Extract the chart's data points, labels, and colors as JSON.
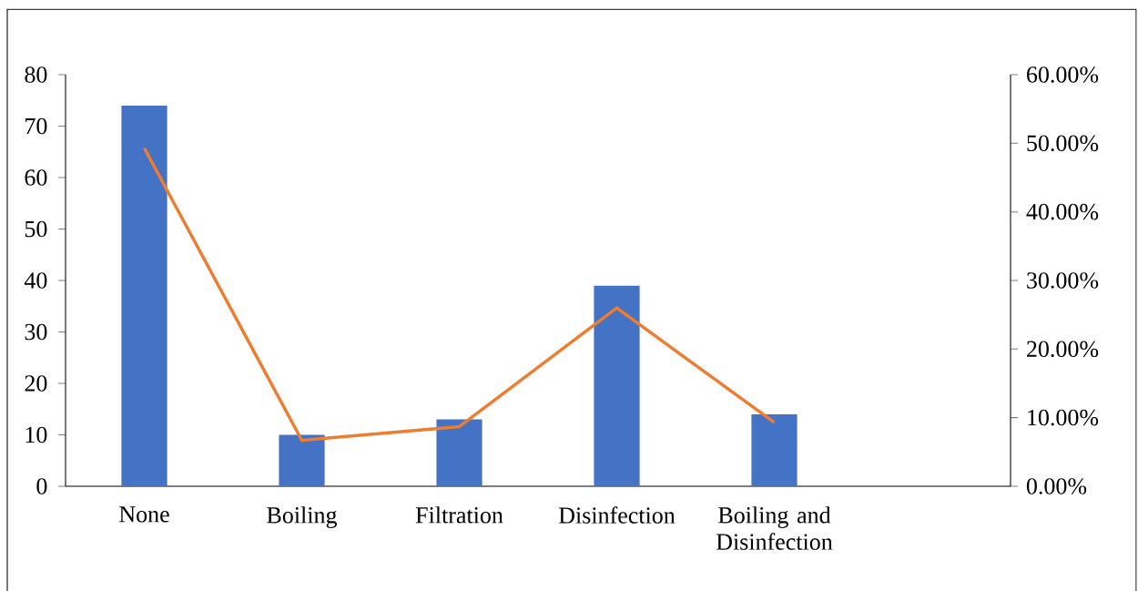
{
  "chart_data": {
    "type": "bar",
    "categories": [
      "None",
      "Boiling",
      "Filtration",
      "Disinfection",
      "Boiling and Disinfection",
      null
    ],
    "series": [
      {
        "color": "#4472c4",
        "values": [
          74,
          10,
          13,
          39,
          14,
          null
        ]
      },
      {
        "type": "line",
        "axis": "y2",
        "color": "#ed7d31",
        "values": [
          49.3,
          6.7,
          8.7,
          26,
          9.3,
          null
        ]
      }
    ],
    "ylim": [
      0,
      80
    ],
    "yticks": [
      0,
      10,
      20,
      30,
      40,
      50,
      60,
      70,
      80
    ],
    "y2lim": [
      0,
      60
    ],
    "y2ticks": [
      {
        "value": 0,
        "label": "0.00%"
      },
      {
        "value": 10,
        "label": "10.00%"
      },
      {
        "value": 20,
        "label": "20.00%"
      },
      {
        "value": 30,
        "label": "30.00%"
      },
      {
        "value": 40,
        "label": "40.00%"
      },
      {
        "value": 50,
        "label": "50.00%"
      },
      {
        "value": 60,
        "label": "60.00%"
      }
    ]
  }
}
